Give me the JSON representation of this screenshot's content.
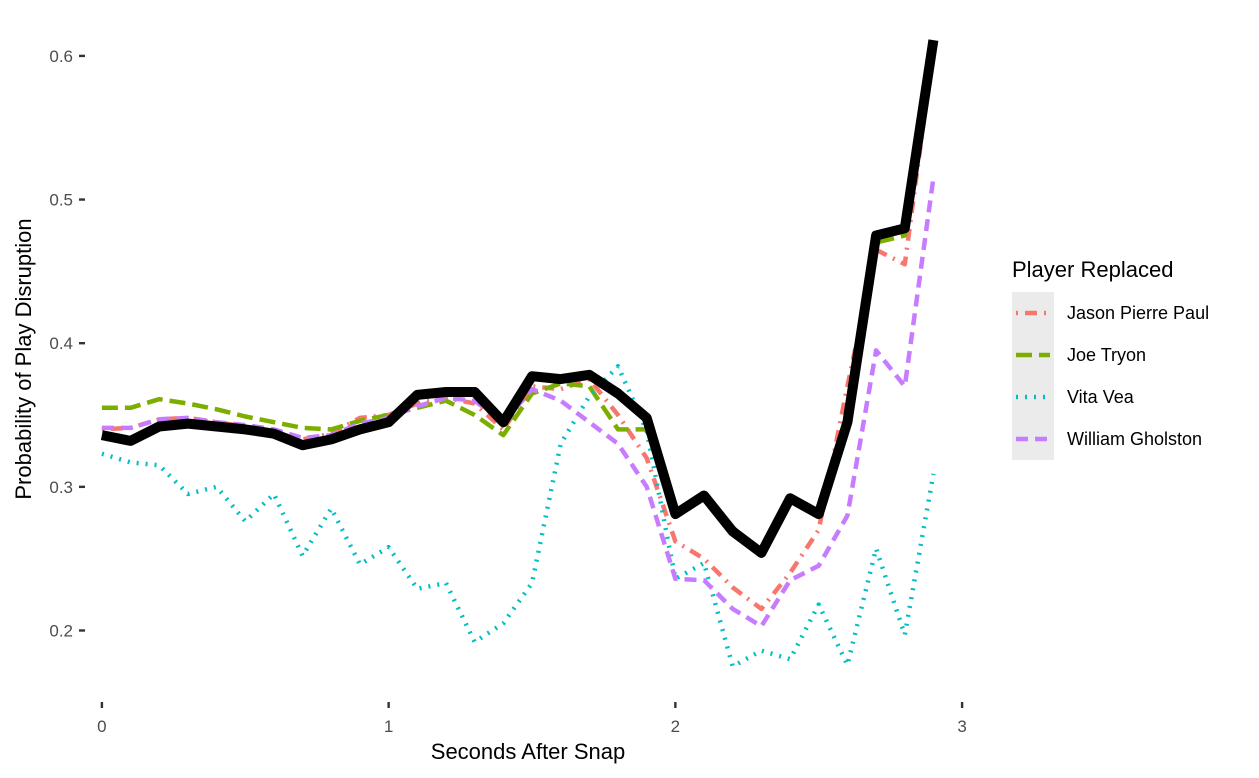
{
  "chart_data": {
    "type": "line",
    "xlabel": "Seconds After Snap",
    "ylabel": "Probability of Play Disruption",
    "xlim": [
      -0.045,
      3.045
    ],
    "ylim": [
      0.153,
      0.625
    ],
    "x_ticks": [
      0,
      1,
      2,
      3
    ],
    "x_tick_labels": [
      "0",
      "1",
      "2",
      "3"
    ],
    "y_ticks": [
      0.2,
      0.3,
      0.4,
      0.5,
      0.6
    ],
    "y_tick_labels": [
      "0.2",
      "0.3",
      "0.4",
      "0.5",
      "0.6"
    ],
    "grid": false,
    "legend": {
      "title": "Player Replaced",
      "position": "right"
    },
    "x": [
      0,
      0.1,
      0.2,
      0.3,
      0.4,
      0.5,
      0.6,
      0.7,
      0.8,
      0.9,
      1.0,
      1.1,
      1.2,
      1.3,
      1.4,
      1.5,
      1.6,
      1.7,
      1.8,
      1.9,
      2.0,
      2.1,
      2.2,
      2.3,
      2.4,
      2.5,
      2.6,
      2.7,
      2.8,
      2.9
    ],
    "baseline": {
      "values": [
        0.336,
        0.332,
        0.342,
        0.344,
        0.342,
        0.34,
        0.337,
        0.329,
        0.333,
        0.34,
        0.345,
        0.364,
        0.366,
        0.366,
        0.345,
        0.377,
        0.375,
        0.378,
        0.365,
        0.348,
        0.281,
        0.294,
        0.269,
        0.254,
        0.292,
        0.281,
        0.345,
        0.475,
        0.48,
        0.611
      ],
      "color": "#000000"
    },
    "series": [
      {
        "name": "Jason Pierre Paul",
        "color": "#F8766D",
        "dash": "dotdash",
        "values": [
          0.34,
          0.341,
          0.347,
          0.348,
          0.345,
          0.342,
          0.338,
          0.333,
          0.337,
          0.348,
          0.35,
          0.358,
          0.362,
          0.358,
          0.34,
          0.37,
          0.368,
          0.375,
          0.35,
          0.32,
          0.262,
          0.25,
          0.23,
          0.215,
          0.24,
          0.27,
          0.37,
          0.465,
          0.455,
          0.605
        ]
      },
      {
        "name": "Joe Tryon",
        "color": "#7CAE00",
        "dash": "longdash",
        "values": [
          0.355,
          0.355,
          0.361,
          0.358,
          0.354,
          0.349,
          0.345,
          0.341,
          0.34,
          0.346,
          0.35,
          0.355,
          0.36,
          0.35,
          0.336,
          0.365,
          0.372,
          0.37,
          0.34,
          0.34,
          0.28,
          0.295,
          0.272,
          0.252,
          0.29,
          0.28,
          0.345,
          0.47,
          0.475,
          0.61
        ]
      },
      {
        "name": "Vita Vea",
        "color": "#00BFC4",
        "dash": "dotted",
        "values": [
          0.323,
          0.317,
          0.315,
          0.295,
          0.3,
          0.276,
          0.295,
          0.252,
          0.285,
          0.246,
          0.258,
          0.229,
          0.233,
          0.192,
          0.205,
          0.233,
          0.33,
          0.363,
          0.384,
          0.339,
          0.236,
          0.247,
          0.175,
          0.186,
          0.18,
          0.218,
          0.176,
          0.257,
          0.197,
          0.309
        ]
      },
      {
        "name": "William Gholston",
        "color": "#C77CFF",
        "dash": "dashed",
        "values": [
          0.341,
          0.341,
          0.347,
          0.348,
          0.345,
          0.343,
          0.34,
          0.334,
          0.336,
          0.344,
          0.348,
          0.356,
          0.362,
          0.36,
          0.345,
          0.368,
          0.36,
          0.345,
          0.33,
          0.3,
          0.236,
          0.235,
          0.215,
          0.203,
          0.235,
          0.245,
          0.28,
          0.395,
          0.37,
          0.515
        ]
      }
    ]
  }
}
